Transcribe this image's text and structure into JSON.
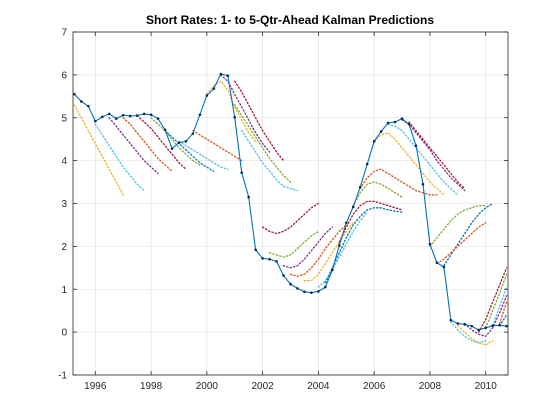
{
  "chart_data": {
    "type": "line",
    "title": "Short Rates: 1- to 5-Qtr-Ahead Kalman Predictions",
    "xlabel": "",
    "ylabel": "",
    "xlim": [
      1995.2,
      2010.8
    ],
    "ylim": [
      -1,
      7
    ],
    "grid": true,
    "legend": "none",
    "x_ticks": [
      1996,
      1998,
      2000,
      2002,
      2004,
      2006,
      2008,
      2010
    ],
    "y_ticks": [
      -1,
      0,
      1,
      2,
      3,
      4,
      5,
      6,
      7
    ],
    "actual_series": {
      "name": "",
      "color": "#0072BD",
      "x": [
        1995.25,
        1995.5,
        1995.75,
        1996.0,
        1996.25,
        1996.5,
        1996.75,
        1997.0,
        1997.25,
        1997.5,
        1997.75,
        1998.0,
        1998.25,
        1998.5,
        1998.75,
        1999.0,
        1999.25,
        1999.5,
        1999.75,
        2000.0,
        2000.25,
        2000.5,
        2000.75,
        2001.0,
        2001.25,
        2001.5,
        2001.75,
        2002.0,
        2002.25,
        2002.5,
        2002.75,
        2003.0,
        2003.25,
        2003.5,
        2003.75,
        2004.0,
        2004.25,
        2004.5,
        2004.75,
        2005.0,
        2005.25,
        2005.5,
        2005.75,
        2006.0,
        2006.25,
        2006.5,
        2006.75,
        2007.0,
        2007.25,
        2007.5,
        2007.75,
        2008.0,
        2008.25,
        2008.5,
        2008.75,
        2009.0,
        2009.25,
        2009.5,
        2009.75,
        2010.0,
        2010.25,
        2010.5,
        2010.75
      ],
      "values": [
        5.55,
        5.38,
        5.27,
        4.92,
        5.02,
        5.09,
        4.98,
        5.06,
        5.04,
        5.05,
        5.09,
        5.07,
        4.98,
        4.72,
        4.28,
        4.42,
        4.45,
        4.63,
        5.07,
        5.52,
        5.68,
        6.02,
        5.98,
        5.01,
        3.72,
        3.15,
        1.92,
        1.72,
        1.7,
        1.65,
        1.32,
        1.12,
        1.02,
        0.94,
        0.92,
        0.95,
        1.05,
        1.45,
        2.02,
        2.55,
        2.92,
        3.38,
        3.92,
        4.45,
        4.68,
        4.88,
        4.9,
        4.98,
        4.85,
        4.35,
        3.45,
        2.05,
        1.62,
        1.52,
        0.28,
        0.2,
        0.18,
        0.14,
        0.05,
        0.1,
        0.15,
        0.16,
        0.14
      ]
    },
    "prediction_series": [
      {
        "name": "",
        "color": "#EDB120",
        "x": [
          1995.25,
          1995.5,
          1995.75,
          1996.0,
          1996.25,
          1996.5,
          1996.75,
          1997.0
        ],
        "values": [
          5.3,
          5.0,
          4.7,
          4.4,
          4.1,
          3.8,
          3.5,
          3.2
        ]
      },
      {
        "name": "",
        "color": "#4DBEEE",
        "x": [
          1996.0,
          1996.25,
          1996.5,
          1996.75,
          1997.0,
          1997.25,
          1997.5,
          1997.75
        ],
        "values": [
          4.85,
          4.6,
          4.35,
          4.1,
          3.85,
          3.65,
          3.45,
          3.3
        ]
      },
      {
        "name": "",
        "color": "#7E2F8E",
        "x": [
          1996.5,
          1996.75,
          1997.0,
          1997.25,
          1997.5,
          1997.75,
          1998.0,
          1998.25
        ],
        "values": [
          5.0,
          4.8,
          4.6,
          4.4,
          4.2,
          4.0,
          3.85,
          3.7
        ]
      },
      {
        "name": "",
        "color": "#D95319",
        "x": [
          1997.0,
          1997.25,
          1997.5,
          1997.75,
          1998.0,
          1998.25,
          1998.5,
          1998.75
        ],
        "values": [
          5.0,
          4.85,
          4.65,
          4.45,
          4.25,
          4.05,
          3.9,
          3.75
        ]
      },
      {
        "name": "",
        "color": "#A2142F",
        "x": [
          1997.5,
          1997.75,
          1998.0,
          1998.25,
          1998.5,
          1998.75,
          1999.0,
          1999.25
        ],
        "values": [
          5.05,
          4.9,
          4.75,
          4.55,
          4.35,
          4.15,
          3.95,
          3.8
        ]
      },
      {
        "name": "",
        "color": "#77AC30",
        "x": [
          1998.0,
          1998.25,
          1998.5,
          1998.75,
          1999.0,
          1999.25,
          1999.5,
          1999.75
        ],
        "values": [
          5.0,
          4.85,
          4.7,
          4.5,
          4.3,
          4.15,
          4.0,
          3.9
        ]
      },
      {
        "name": "",
        "color": "#0072BD",
        "x": [
          1998.5,
          1998.75,
          1999.0,
          1999.25,
          1999.5,
          1999.75,
          2000.0,
          2000.25
        ],
        "values": [
          4.7,
          4.55,
          4.4,
          4.25,
          4.1,
          3.95,
          3.85,
          3.75
        ]
      },
      {
        "name": "",
        "color": "#4DBEEE",
        "x": [
          1999.0,
          1999.25,
          1999.5,
          1999.75,
          2000.0,
          2000.25,
          2000.5,
          2000.75
        ],
        "values": [
          4.45,
          4.35,
          4.25,
          4.15,
          4.05,
          3.95,
          3.85,
          3.8
        ]
      },
      {
        "name": "",
        "color": "#D95319",
        "x": [
          1999.5,
          1999.75,
          2000.0,
          2000.25,
          2000.5,
          2000.75,
          2001.0,
          2001.25
        ],
        "values": [
          4.7,
          4.6,
          4.5,
          4.4,
          4.3,
          4.2,
          4.1,
          4.0
        ]
      },
      {
        "name": "",
        "color": "#EDB120",
        "x": [
          2000.0,
          2000.25,
          2000.5,
          2000.75,
          2001.0,
          2001.25,
          2001.5,
          2001.75
        ],
        "values": [
          5.55,
          5.75,
          5.85,
          5.65,
          5.25,
          4.95,
          4.65,
          4.45
        ]
      },
      {
        "name": "",
        "color": "#7E2F8E",
        "x": [
          2000.5,
          2000.75,
          2001.0,
          2001.25,
          2001.5,
          2001.75,
          2002.0,
          2002.25
        ],
        "values": [
          6.0,
          5.85,
          5.55,
          5.25,
          4.95,
          4.65,
          4.4,
          4.2
        ]
      },
      {
        "name": "",
        "color": "#A2142F",
        "x": [
          2001.0,
          2001.25,
          2001.5,
          2001.75,
          2002.0,
          2002.25,
          2002.5,
          2002.75
        ],
        "values": [
          5.85,
          5.6,
          5.3,
          5.0,
          4.7,
          4.45,
          4.2,
          4.0
        ]
      },
      {
        "name": "",
        "color": "#77AC30",
        "x": [
          2001.0,
          2001.25,
          2001.5,
          2001.75,
          2002.0,
          2002.25,
          2002.5,
          2002.75,
          2003.0
        ],
        "values": [
          5.3,
          5.05,
          4.8,
          4.55,
          4.3,
          4.05,
          3.85,
          3.65,
          3.5
        ]
      },
      {
        "name": "",
        "color": "#4DBEEE",
        "x": [
          2001.25,
          2001.5,
          2001.75,
          2002.0,
          2002.25,
          2002.5,
          2002.75,
          2003.0,
          2003.25
        ],
        "values": [
          4.7,
          4.45,
          4.2,
          3.95,
          3.75,
          3.55,
          3.4,
          3.35,
          3.3
        ]
      },
      {
        "name": "",
        "color": "#A2142F",
        "x": [
          2002.0,
          2002.25,
          2002.5,
          2002.75,
          2003.0,
          2003.25,
          2003.5,
          2003.75,
          2004.0
        ],
        "values": [
          2.45,
          2.35,
          2.3,
          2.35,
          2.45,
          2.6,
          2.75,
          2.9,
          3.0
        ]
      },
      {
        "name": "",
        "color": "#77AC30",
        "x": [
          2002.25,
          2002.5,
          2002.75,
          2003.0,
          2003.25,
          2003.5,
          2003.75,
          2004.0
        ],
        "values": [
          1.85,
          1.8,
          1.75,
          1.8,
          1.95,
          2.1,
          2.25,
          2.35
        ]
      },
      {
        "name": "",
        "color": "#7E2F8E",
        "x": [
          2002.75,
          2003.0,
          2003.25,
          2003.5,
          2003.75,
          2004.0,
          2004.25,
          2004.5
        ],
        "values": [
          1.55,
          1.5,
          1.55,
          1.7,
          1.9,
          2.1,
          2.3,
          2.45
        ]
      },
      {
        "name": "",
        "color": "#D95319",
        "x": [
          2003.0,
          2003.25,
          2003.5,
          2003.75,
          2004.0,
          2004.25,
          2004.5,
          2004.75,
          2005.0
        ],
        "values": [
          1.35,
          1.3,
          1.35,
          1.5,
          1.7,
          1.95,
          2.15,
          2.35,
          2.5
        ]
      },
      {
        "name": "",
        "color": "#EDB120",
        "x": [
          2003.5,
          2003.75,
          2004.0,
          2004.25,
          2004.5,
          2004.75,
          2005.0,
          2005.25
        ],
        "values": [
          1.2,
          1.2,
          1.35,
          1.6,
          1.85,
          2.1,
          2.35,
          2.55
        ]
      },
      {
        "name": "",
        "color": "#4DBEEE",
        "x": [
          2004.0,
          2004.25,
          2004.5,
          2004.75,
          2005.0,
          2005.25,
          2005.5,
          2005.75
        ],
        "values": [
          1.05,
          1.2,
          1.45,
          1.75,
          2.05,
          2.35,
          2.6,
          2.8
        ]
      },
      {
        "name": "",
        "color": "#0072BD",
        "x": [
          2004.25,
          2004.5,
          2004.75,
          2005.0,
          2005.25,
          2005.5,
          2005.75,
          2006.0,
          2006.25,
          2006.5,
          2006.75,
          2007.0
        ],
        "values": [
          1.15,
          1.5,
          1.85,
          2.2,
          2.5,
          2.7,
          2.85,
          2.9,
          2.9,
          2.85,
          2.82,
          2.8
        ]
      },
      {
        "name": "",
        "color": "#A2142F",
        "x": [
          2004.75,
          2005.0,
          2005.25,
          2005.5,
          2005.75,
          2006.0,
          2006.25,
          2006.5,
          2006.75,
          2007.0
        ],
        "values": [
          2.1,
          2.45,
          2.75,
          2.95,
          3.05,
          3.05,
          3.0,
          2.95,
          2.9,
          2.85
        ]
      },
      {
        "name": "",
        "color": "#77AC30",
        "x": [
          2005.25,
          2005.5,
          2005.75,
          2006.0,
          2006.25,
          2006.5,
          2006.75,
          2007.0
        ],
        "values": [
          2.95,
          3.25,
          3.45,
          3.5,
          3.45,
          3.35,
          3.25,
          3.15
        ]
      },
      {
        "name": "",
        "color": "#D95319",
        "x": [
          2005.5,
          2005.75,
          2006.0,
          2006.25,
          2006.5,
          2006.75,
          2007.0,
          2007.25,
          2007.5,
          2007.75,
          2008.0,
          2008.25
        ],
        "values": [
          3.35,
          3.6,
          3.75,
          3.8,
          3.7,
          3.6,
          3.5,
          3.4,
          3.3,
          3.25,
          3.2,
          3.2
        ]
      },
      {
        "name": "",
        "color": "#EDB120",
        "x": [
          2006.0,
          2006.25,
          2006.5,
          2006.75,
          2007.0,
          2007.25,
          2007.5,
          2007.75,
          2008.0,
          2008.25,
          2008.5
        ],
        "values": [
          4.45,
          4.6,
          4.65,
          4.5,
          4.3,
          4.1,
          3.9,
          3.7,
          3.5,
          3.35,
          3.2
        ]
      },
      {
        "name": "",
        "color": "#4DBEEE",
        "x": [
          2006.5,
          2006.75,
          2007.0,
          2007.25,
          2007.5,
          2007.75,
          2008.0,
          2008.25,
          2008.5,
          2008.75,
          2009.0
        ],
        "values": [
          4.85,
          4.8,
          4.7,
          4.5,
          4.3,
          4.1,
          3.9,
          3.7,
          3.5,
          3.35,
          3.2
        ]
      },
      {
        "name": "",
        "color": "#7E2F8E",
        "x": [
          2007.0,
          2007.25,
          2007.5,
          2007.75,
          2008.0,
          2008.25,
          2008.5,
          2008.75,
          2009.0,
          2009.25
        ],
        "values": [
          4.95,
          4.85,
          4.65,
          4.45,
          4.25,
          4.0,
          3.8,
          3.6,
          3.45,
          3.3
        ]
      },
      {
        "name": "",
        "color": "#A2142F",
        "x": [
          2007.25,
          2007.5,
          2007.75,
          2008.0,
          2008.25,
          2008.5,
          2008.75,
          2009.0,
          2009.25
        ],
        "values": [
          4.9,
          4.7,
          4.5,
          4.3,
          4.1,
          3.9,
          3.7,
          3.5,
          3.35
        ]
      },
      {
        "name": "",
        "color": "#77AC30",
        "x": [
          2008.0,
          2008.25,
          2008.5,
          2008.75,
          2009.0,
          2009.25,
          2009.5,
          2009.75,
          2010.0
        ],
        "values": [
          2.0,
          2.2,
          2.4,
          2.6,
          2.75,
          2.85,
          2.9,
          2.95,
          2.95
        ]
      },
      {
        "name": "",
        "color": "#0072BD",
        "x": [
          2008.5,
          2008.75,
          2009.0,
          2009.25,
          2009.5,
          2009.75,
          2010.0,
          2010.25
        ],
        "values": [
          1.55,
          1.8,
          2.05,
          2.3,
          2.55,
          2.75,
          2.9,
          3.0
        ]
      },
      {
        "name": "",
        "color": "#D95319",
        "x": [
          2008.25,
          2008.5,
          2008.75,
          2009.0,
          2009.25,
          2009.5,
          2009.75,
          2010.0
        ],
        "values": [
          1.6,
          1.7,
          1.85,
          2.0,
          2.15,
          2.3,
          2.45,
          2.55
        ]
      },
      {
        "name": "",
        "color": "#4DBEEE",
        "x": [
          2008.75,
          2009.0,
          2009.25,
          2009.5,
          2009.75,
          2010.0
        ],
        "values": [
          0.25,
          0.05,
          -0.1,
          -0.2,
          -0.25,
          -0.2
        ]
      },
      {
        "name": "",
        "color": "#EDB120",
        "x": [
          2009.0,
          2009.25,
          2009.5,
          2009.75,
          2010.0,
          2010.25
        ],
        "values": [
          0.15,
          0.0,
          -0.15,
          -0.25,
          -0.3,
          -0.2
        ]
      },
      {
        "name": "",
        "color": "#7E2F8E",
        "x": [
          2009.25,
          2009.5,
          2009.75,
          2010.0,
          2010.25,
          2010.5,
          2010.75
        ],
        "values": [
          0.2,
          0.05,
          -0.05,
          -0.1,
          0.1,
          0.45,
          0.85
        ]
      },
      {
        "name": "",
        "color": "#A2142F",
        "x": [
          2009.75,
          2010.0,
          2010.25,
          2010.5,
          2010.75
        ],
        "values": [
          0.0,
          0.3,
          0.7,
          1.1,
          1.5
        ]
      },
      {
        "name": "",
        "color": "#77AC30",
        "x": [
          2010.0,
          2010.25,
          2010.5,
          2010.75
        ],
        "values": [
          0.1,
          0.5,
          0.9,
          1.35
        ]
      },
      {
        "name": "",
        "color": "#4DBEEE",
        "x": [
          2010.25,
          2010.5,
          2010.75
        ],
        "values": [
          0.15,
          0.6,
          1.05
        ]
      },
      {
        "name": "",
        "color": "#D95319",
        "x": [
          2010.5,
          2010.75
        ],
        "values": [
          0.2,
          0.7
        ]
      },
      {
        "name": "",
        "color": "#0072BD",
        "x": [
          2010.5,
          2010.75
        ],
        "values": [
          0.15,
          0.4
        ]
      }
    ]
  }
}
